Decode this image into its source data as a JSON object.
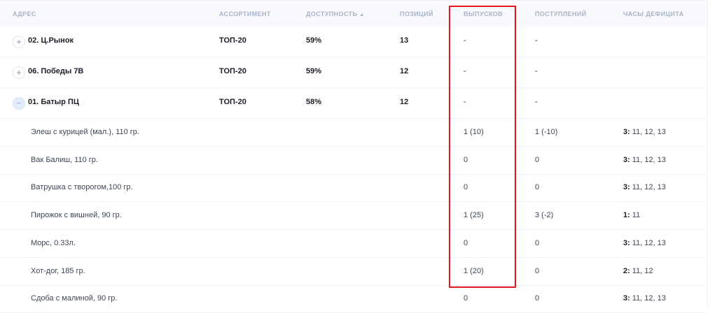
{
  "headers": {
    "address": "АДРЕС",
    "assortment": "АССОРТИМЕНТ",
    "availability": "ДОСТУПНОСТЬ",
    "positions": "ПОЗИЦИЙ",
    "releases": "ВЫПУСКОВ",
    "receipts": "ПОСТУПЛЕНИЙ",
    "deficit_hours": "ЧАСЫ ДЕФИЦИТА"
  },
  "highlight_color": "#e8141c",
  "groups": [
    {
      "address": "02. Ц.Рынок",
      "assortment": "ТОП-20",
      "availability": "59%",
      "positions": "13",
      "releases": "-",
      "receipts": "-",
      "expanded": false
    },
    {
      "address": "06. Победы 7В",
      "assortment": "ТОП-20",
      "availability": "59%",
      "positions": "12",
      "releases": "-",
      "receipts": "-",
      "expanded": false
    },
    {
      "address": "01. Батыр ПЦ",
      "assortment": "ТОП-20",
      "availability": "58%",
      "positions": "12",
      "releases": "-",
      "receipts": "-",
      "expanded": true
    }
  ],
  "items": [
    {
      "name": "Элеш с курицей (мал.), 110 гр.",
      "releases": "1 (10)",
      "receipts": "1 (-10)",
      "hours_count": "3:",
      "hours": " 11, 12, 13"
    },
    {
      "name": "Вак Балиш, 110 гр.",
      "releases": "0",
      "receipts": "0",
      "hours_count": "3:",
      "hours": " 11, 12, 13"
    },
    {
      "name": "Ватрушка с творогом,100 гр.",
      "releases": "0",
      "receipts": "0",
      "hours_count": "3:",
      "hours": " 11, 12, 13"
    },
    {
      "name": "Пирожок с вишней, 90 гр.",
      "releases": "1 (25)",
      "receipts": "3 (-2)",
      "hours_count": "1:",
      "hours": " 11"
    },
    {
      "name": "Морс, 0.33л.",
      "releases": "0",
      "receipts": "0",
      "hours_count": "3:",
      "hours": " 11, 12, 13"
    },
    {
      "name": "Хот-дог, 185 гр.",
      "releases": "1 (20)",
      "receipts": "0",
      "hours_count": "2:",
      "hours": " 11, 12"
    },
    {
      "name": "Сдоба с малиной, 90 гр.",
      "releases": "0",
      "receipts": "0",
      "hours_count": "3:",
      "hours": " 11, 12, 13"
    }
  ]
}
